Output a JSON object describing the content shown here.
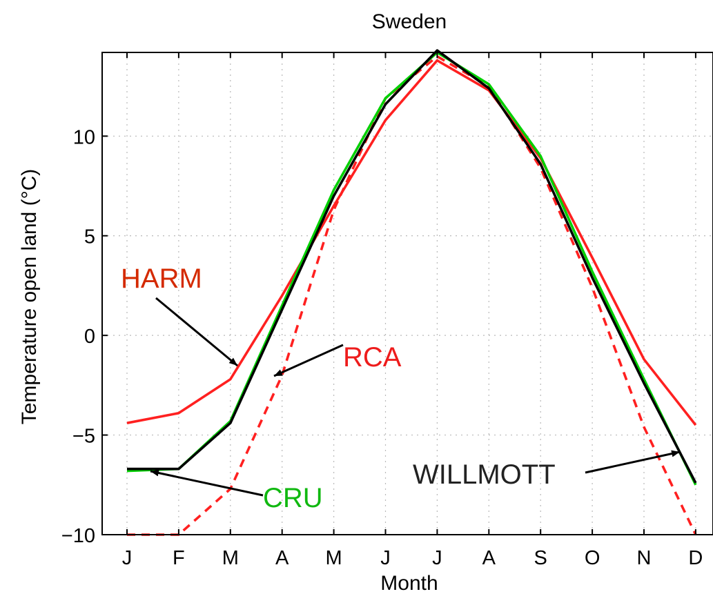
{
  "chart_data": {
    "type": "line",
    "title": "Sweden",
    "xlabel": "Month",
    "ylabel": "Temperature open land (",
    "ylabel_unit": "°C)",
    "categories": [
      "J",
      "F",
      "M",
      "A",
      "M",
      "J",
      "J",
      "A",
      "S",
      "O",
      "N",
      "D"
    ],
    "ylim": [
      -10,
      14.2
    ],
    "yticks": [
      -10,
      -5,
      0,
      5,
      10
    ],
    "ytick_labels": [
      "−10",
      "−5",
      "0",
      "5",
      "10"
    ],
    "grid": true,
    "series": [
      {
        "name": "HARM",
        "color": "#ff2020",
        "dash": "solid",
        "values": [
          -4.4,
          -3.9,
          -2.2,
          2.0,
          6.5,
          10.8,
          13.8,
          12.3,
          8.9,
          3.9,
          -1.2,
          -4.5
        ]
      },
      {
        "name": "RCA",
        "color": "#ff2020",
        "dash": "dashed",
        "values": [
          -10.0,
          -10.0,
          -7.7,
          -2.0,
          6.3,
          11.9,
          14.0,
          12.5,
          8.4,
          2.4,
          -4.6,
          -10.0
        ]
      },
      {
        "name": "CRU",
        "color": "#00d000",
        "dash": "solid",
        "values": [
          -6.8,
          -6.7,
          -4.3,
          1.5,
          7.3,
          11.9,
          14.2,
          12.6,
          9.0,
          3.2,
          -2.2,
          -7.5
        ]
      },
      {
        "name": "WILLMOTT",
        "color": "#000000",
        "dash": "solid",
        "values": [
          -6.7,
          -6.7,
          -4.4,
          1.3,
          7.0,
          11.6,
          14.3,
          12.4,
          8.6,
          2.9,
          -2.4,
          -7.4
        ]
      }
    ],
    "annotations": [
      {
        "label": "HARM",
        "color": "#d42a00"
      },
      {
        "label": "RCA",
        "color": "#ee1c1c"
      },
      {
        "label": "CRU",
        "color": "#10b810"
      },
      {
        "label": "WILLMOTT",
        "color": "#222222"
      }
    ]
  }
}
